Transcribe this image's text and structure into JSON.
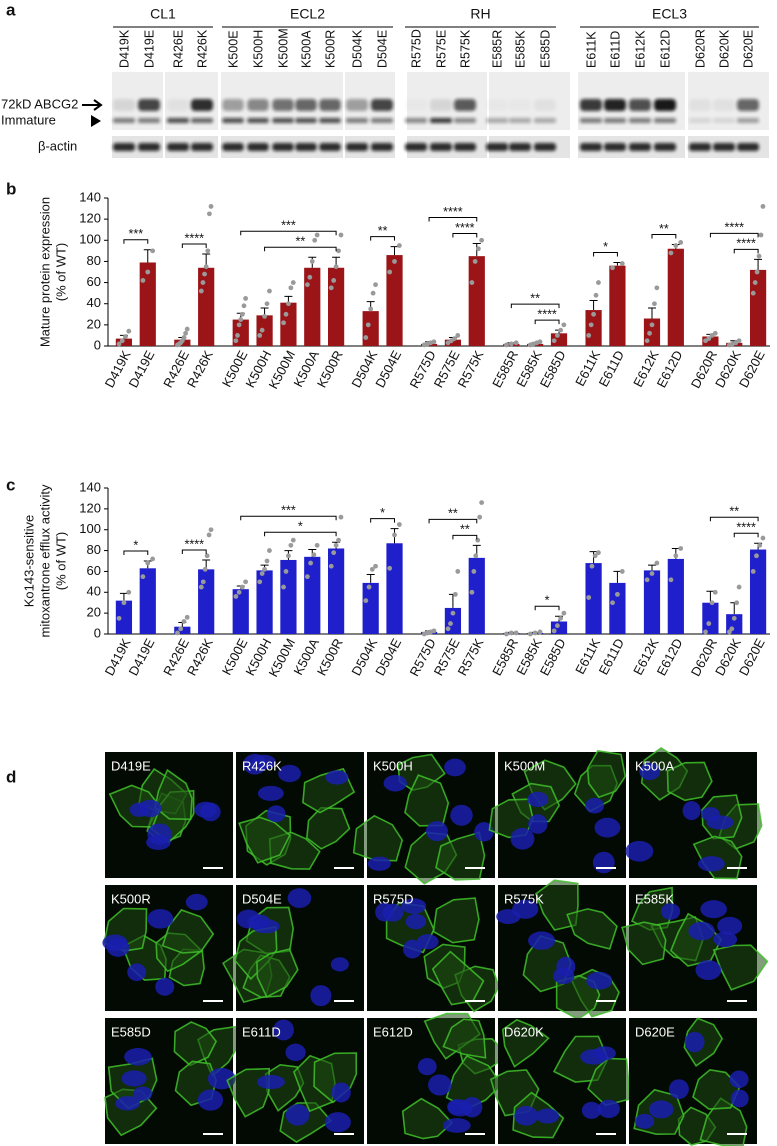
{
  "panel_labels": [
    "a",
    "b",
    "c",
    "d"
  ],
  "blot": {
    "groups": [
      {
        "name": "CL1",
        "from": "D419K",
        "to": "R426K"
      },
      {
        "name": "ECL2",
        "from": "K500E",
        "to": "D504E"
      },
      {
        "name": "RH",
        "from": "R575D",
        "to": "E585D"
      },
      {
        "name": "ECL3",
        "from": "E611K",
        "to": "D620E"
      }
    ],
    "lanes": [
      "D419K",
      "D419E",
      "R426E",
      "R426K",
      "K500E",
      "K500H",
      "K500M",
      "K500A",
      "K500R",
      "D504K",
      "D504E",
      "R575D",
      "R575E",
      "R575K",
      "E585R",
      "E585K",
      "E585D",
      "E611K",
      "E611D",
      "E612K",
      "E612D",
      "D620R",
      "D620K",
      "D620E"
    ],
    "mature_label": "72kD ABCG2",
    "immature_label": "Immature",
    "loading_label": "β-actin"
  },
  "chart_data": [
    {
      "type": "bar",
      "ylabel": [
        "Mature protein expression",
        "(% of WT)"
      ],
      "color": "#9b1518",
      "categories": [
        "D419K",
        "D419E",
        null,
        "R426E",
        "R426K",
        null,
        "K500E",
        "K500H",
        "K500M",
        "K500A",
        "K500R",
        null,
        "D504K",
        "D504E",
        null,
        "R575D",
        "R575E",
        "R575K",
        null,
        "E585R",
        "E585K",
        "E585D",
        null,
        "E611K",
        "E611D",
        null,
        "E612K",
        "E612D",
        null,
        "D620R",
        "D620K",
        "D620E"
      ],
      "values": [
        7,
        79,
        null,
        6,
        74,
        null,
        25,
        29,
        41,
        74,
        74,
        null,
        33,
        86,
        null,
        2,
        6,
        85,
        null,
        2,
        2,
        12,
        null,
        34,
        76,
        null,
        26,
        92,
        null,
        9,
        3,
        72
      ],
      "errors": [
        3,
        12,
        null,
        2,
        13,
        null,
        6,
        7,
        6,
        10,
        10,
        null,
        9,
        8,
        null,
        2,
        2,
        12,
        null,
        1,
        1,
        3,
        null,
        9,
        3,
        null,
        10,
        4,
        null,
        2,
        2,
        10
      ],
      "points": [
        [
          2,
          5,
          9,
          14
        ],
        [
          62,
          70,
          90
        ],
        null,
        [
          1,
          2,
          3,
          5,
          8,
          12,
          16
        ],
        [
          52,
          60,
          68,
          75,
          90,
          125,
          132
        ],
        null,
        [
          5,
          10,
          20,
          25,
          30,
          38,
          45
        ],
        [
          10,
          15,
          28,
          40,
          52
        ],
        [
          22,
          30,
          40,
          55,
          60
        ],
        [
          58,
          65,
          80,
          100,
          105
        ],
        [
          55,
          62,
          75,
          90,
          105
        ],
        null,
        [
          8,
          20,
          35,
          50,
          58
        ],
        [
          70,
          80,
          95
        ],
        null,
        [
          1,
          2,
          3,
          4
        ],
        [
          3,
          5,
          7,
          10
        ],
        [
          60,
          80,
          92,
          100
        ],
        null,
        [
          1,
          2,
          3
        ],
        [
          1,
          2,
          3,
          4
        ],
        [
          5,
          10,
          15,
          20
        ],
        null,
        [
          10,
          20,
          30,
          48,
          60
        ],
        [
          74,
          78
        ],
        null,
        [
          5,
          12,
          20,
          40,
          55
        ],
        [
          88,
          95,
          98
        ],
        null,
        [
          5,
          7,
          10,
          12
        ],
        [
          1,
          2,
          3,
          5
        ],
        [
          50,
          60,
          70,
          85,
          105,
          132
        ]
      ],
      "ylim": [
        0,
        140
      ],
      "yticks": [
        0,
        20,
        40,
        60,
        80,
        100,
        120,
        140
      ],
      "significance": [
        {
          "from": "D419K",
          "to": "D419E",
          "label": "***"
        },
        {
          "from": "R426E",
          "to": "R426K",
          "label": "****"
        },
        {
          "from": "K500H",
          "to": "K500R",
          "label": "**"
        },
        {
          "from": "K500E",
          "to": "K500R",
          "label": "***"
        },
        {
          "from": "D504K",
          "to": "D504E",
          "label": "**"
        },
        {
          "from": "R575E",
          "to": "R575K",
          "label": "****"
        },
        {
          "from": "R575D",
          "to": "R575K",
          "label": "****"
        },
        {
          "from": "E585K",
          "to": "E585D",
          "label": "****"
        },
        {
          "from": "E585R",
          "to": "E585D",
          "label": "**"
        },
        {
          "from": "E611K",
          "to": "E611D",
          "label": "*"
        },
        {
          "from": "E612K",
          "to": "E612D",
          "label": "**"
        },
        {
          "from": "D620K",
          "to": "D620E",
          "label": "****"
        },
        {
          "from": "D620R",
          "to": "D620E",
          "label": "****"
        }
      ]
    },
    {
      "type": "bar",
      "ylabel": [
        "Ko143-sensitive",
        "mitoxantrone efflux activity",
        "(% of WT)"
      ],
      "color": "#1f1fcc",
      "categories": [
        "D419K",
        "D419E",
        null,
        "R426E",
        "R426K",
        null,
        "K500E",
        "K500H",
        "K500M",
        "K500A",
        "K500R",
        null,
        "D504K",
        "D504E",
        null,
        "R575D",
        "R575E",
        "R575K",
        null,
        "E585R",
        "E585K",
        "E585D",
        null,
        "E611K",
        "E611D",
        null,
        "E612K",
        "E612D",
        null,
        "D620R",
        "D620K",
        "D620E"
      ],
      "values": [
        32,
        63,
        null,
        7,
        62,
        null,
        43,
        61,
        71,
        74,
        82,
        null,
        49,
        87,
        null,
        2,
        25,
        73,
        null,
        1,
        1,
        12,
        null,
        68,
        49,
        null,
        61,
        72,
        null,
        30,
        19,
        81
      ],
      "errors": [
        7,
        7,
        null,
        4,
        9,
        null,
        3,
        5,
        9,
        7,
        6,
        null,
        8,
        14,
        null,
        1,
        13,
        12,
        null,
        0.5,
        0.5,
        5,
        null,
        11,
        11,
        null,
        5,
        10,
        null,
        11,
        11,
        6
      ],
      "points": [
        [
          15,
          30,
          40
        ],
        [
          55,
          68,
          72
        ],
        null,
        [
          1,
          5,
          12,
          16
        ],
        [
          45,
          50,
          62,
          75,
          95,
          100
        ],
        null,
        [
          36,
          40,
          45,
          50
        ],
        [
          50,
          58,
          62,
          70,
          80
        ],
        [
          45,
          60,
          75,
          85,
          90
        ],
        [
          55,
          68,
          76,
          85
        ],
        [
          65,
          78,
          85,
          90,
          112
        ],
        null,
        [
          32,
          45,
          62,
          65
        ],
        [
          63,
          95,
          105
        ],
        null,
        [
          0,
          1,
          2,
          3
        ],
        [
          5,
          10,
          20,
          38,
          60
        ],
        [
          40,
          60,
          75,
          90,
          112,
          126
        ],
        null,
        [
          0,
          1,
          1
        ],
        [
          0,
          1,
          2
        ],
        [
          3,
          8,
          15,
          20
        ],
        null,
        [
          35,
          65,
          75,
          78
        ],
        [
          30,
          38,
          60
        ],
        null,
        [
          52,
          58,
          68
        ],
        [
          52,
          75,
          82
        ],
        null,
        [
          2,
          10,
          30,
          40
        ],
        [
          2,
          5,
          15,
          30,
          45
        ],
        [
          60,
          75,
          85,
          92
        ]
      ],
      "ylim": [
        0,
        140
      ],
      "yticks": [
        0,
        20,
        40,
        60,
        80,
        100,
        120,
        140
      ],
      "significance": [
        {
          "from": "D419K",
          "to": "D419E",
          "label": "*"
        },
        {
          "from": "R426E",
          "to": "R426K",
          "label": "****"
        },
        {
          "from": "K500H",
          "to": "K500R",
          "label": "*"
        },
        {
          "from": "K500E",
          "to": "K500R",
          "label": "***"
        },
        {
          "from": "D504K",
          "to": "D504E",
          "label": "*"
        },
        {
          "from": "R575E",
          "to": "R575K",
          "label": "**"
        },
        {
          "from": "R575D",
          "to": "R575K",
          "label": "**"
        },
        {
          "from": "E585K",
          "to": "E585D",
          "label": "*"
        },
        {
          "from": "D620K",
          "to": "D620E",
          "label": "****"
        },
        {
          "from": "D620R",
          "to": "D620E",
          "label": "**"
        }
      ]
    }
  ],
  "micrographs": [
    "D419E",
    "R426K",
    "K500H",
    "K500M",
    "K500A",
    "K500R",
    "D504E",
    "R575D",
    "R575K",
    "E585K",
    "E585D",
    "E611D",
    "E612D",
    "D620K",
    "D620E"
  ]
}
